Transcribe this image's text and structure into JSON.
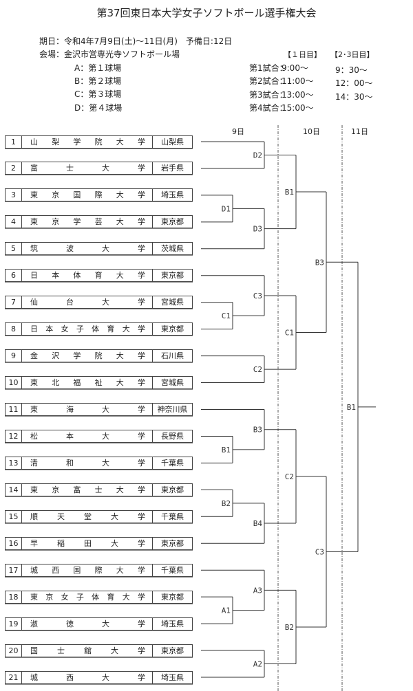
{
  "title": "第37回東日本大学女子ソフトボール選手権大会",
  "dates": "期日：令和4年7月9日(土)～11日(月)　予備日:12日",
  "venue": "会場：金沢市営専光寺ソフトボール場",
  "fields": [
    "A：第１球場",
    "B：第２球場",
    "C：第３球場",
    "D：第４球場"
  ],
  "schedule": {
    "day1_header": "【１日目】",
    "day23_header": "【2･3日目】",
    "games": [
      {
        "label": "第1試合：",
        "day1": "9:00～",
        "day23": "9：30～"
      },
      {
        "label": "第2試合：",
        "day1": "11:00～",
        "day23": "12：00～"
      },
      {
        "label": "第3試合：",
        "day1": "13:00～",
        "day23": "14：30～"
      },
      {
        "label": "第4試合：",
        "day1": "15:00～",
        "day23": ""
      }
    ]
  },
  "day_headers": [
    "9日",
    "10日",
    "11日"
  ],
  "teams": [
    {
      "num": "1",
      "name": "山梨学院大学",
      "pref": "山梨県"
    },
    {
      "num": "2",
      "name": "富士大学",
      "pref": "岩手県"
    },
    {
      "num": "3",
      "name": "東京国際大学",
      "pref": "埼玉県"
    },
    {
      "num": "4",
      "name": "東京学芸大学",
      "pref": "東京都"
    },
    {
      "num": "5",
      "name": "筑波大学",
      "pref": "茨城県"
    },
    {
      "num": "6",
      "name": "日本体育大学",
      "pref": "東京都"
    },
    {
      "num": "7",
      "name": "仙台大学",
      "pref": "宮城県"
    },
    {
      "num": "8",
      "name": "日本女子体育大学",
      "pref": "東京都"
    },
    {
      "num": "9",
      "name": "金沢学院大学",
      "pref": "石川県"
    },
    {
      "num": "10",
      "name": "東北福祉大学",
      "pref": "宮城県"
    },
    {
      "num": "11",
      "name": "東海大学",
      "pref": "神奈川県"
    },
    {
      "num": "12",
      "name": "松本大学",
      "pref": "長野県"
    },
    {
      "num": "13",
      "name": "清和大学",
      "pref": "千葉県"
    },
    {
      "num": "14",
      "name": "東京富士大学",
      "pref": "東京都"
    },
    {
      "num": "15",
      "name": "順天堂大学",
      "pref": "千葉県"
    },
    {
      "num": "16",
      "name": "早稲田大学",
      "pref": "東京都"
    },
    {
      "num": "17",
      "name": "城西国際大学",
      "pref": "千葉県"
    },
    {
      "num": "18",
      "name": "東京女子体育大学",
      "pref": "東京都"
    },
    {
      "num": "19",
      "name": "淑徳大学",
      "pref": "埼玉県"
    },
    {
      "num": "20",
      "name": "国士舘大学",
      "pref": "東京都"
    },
    {
      "num": "21",
      "name": "城西大学",
      "pref": "埼玉県"
    }
  ],
  "matches": [
    {
      "id": "m_d1",
      "label": "D1",
      "round": 1,
      "a": "t3",
      "b": "t4"
    },
    {
      "id": "m_c1",
      "label": "C1",
      "round": 1,
      "a": "t7",
      "b": "t8"
    },
    {
      "id": "m_b1",
      "label": "B1",
      "round": 1,
      "a": "t12",
      "b": "t13"
    },
    {
      "id": "m_b2",
      "label": "B2",
      "round": 1,
      "a": "t14",
      "b": "t15"
    },
    {
      "id": "m_a1",
      "label": "A1",
      "round": 1,
      "a": "t18",
      "b": "t19"
    },
    {
      "id": "m_d2",
      "label": "D2",
      "round": 2,
      "a": "t1",
      "b": "t2"
    },
    {
      "id": "m_d3",
      "label": "D3",
      "round": 2,
      "a": "m_d1",
      "b": "t5"
    },
    {
      "id": "m_c3",
      "label": "C3",
      "round": 2,
      "a": "t6",
      "b": "m_c1"
    },
    {
      "id": "m_c2",
      "label": "C2",
      "round": 2,
      "a": "t9",
      "b": "t10"
    },
    {
      "id": "m_b3",
      "label": "B3",
      "round": 2,
      "a": "t11",
      "b": "m_b1"
    },
    {
      "id": "m_b4",
      "label": "B4",
      "round": 2,
      "a": "m_b2",
      "b": "t16"
    },
    {
      "id": "m_a3",
      "label": "A3",
      "round": 2,
      "a": "t17",
      "b": "m_a1"
    },
    {
      "id": "m_a2",
      "label": "A2",
      "round": 2,
      "a": "t20",
      "b": "t21"
    },
    {
      "id": "q_b1",
      "label": "B1",
      "round": 3,
      "a": "m_d2",
      "b": "m_d3"
    },
    {
      "id": "q_c1",
      "label": "C1",
      "round": 3,
      "a": "m_c3",
      "b": "m_c2"
    },
    {
      "id": "q_c2",
      "label": "C2",
      "round": 3,
      "a": "m_b3",
      "b": "m_b4"
    },
    {
      "id": "q_b2",
      "label": "B2",
      "round": 3,
      "a": "m_a3",
      "b": "m_a2"
    },
    {
      "id": "s_b3",
      "label": "B3",
      "round": 4,
      "a": "q_b1",
      "b": "q_c1"
    },
    {
      "id": "s_c3",
      "label": "C3",
      "round": 4,
      "a": "q_c2",
      "b": "q_b2"
    },
    {
      "id": "f_b1",
      "label": "B1",
      "round": 5,
      "a": "s_b3",
      "b": "s_c3"
    }
  ]
}
